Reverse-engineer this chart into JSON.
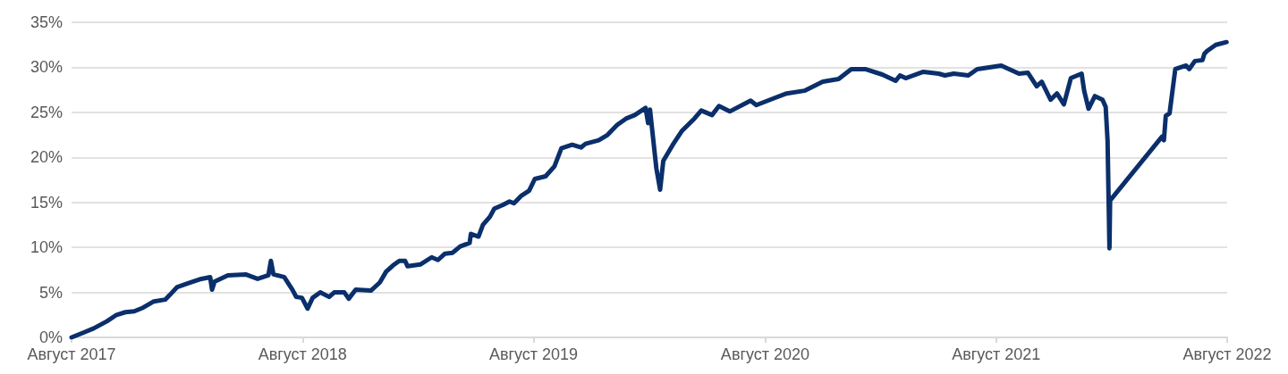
{
  "chart_data": {
    "type": "line",
    "x": [
      "2017-08-01",
      "2017-08-22",
      "2017-09-05",
      "2017-09-26",
      "2017-10-11",
      "2017-10-25",
      "2017-11-08",
      "2017-11-22",
      "2017-12-09",
      "2017-12-27",
      "2018-01-03",
      "2018-01-15",
      "2018-02-01",
      "2018-02-22",
      "2018-03-08",
      "2018-03-11",
      "2018-03-15",
      "2018-04-05",
      "2018-05-03",
      "2018-05-22",
      "2018-06-08",
      "2018-06-12",
      "2018-06-16",
      "2018-07-03",
      "2018-07-16",
      "2018-07-22",
      "2018-07-31",
      "2018-08-09",
      "2018-08-17",
      "2018-08-29",
      "2018-09-12",
      "2018-09-20",
      "2018-10-06",
      "2018-10-13",
      "2018-10-24",
      "2018-11-17",
      "2018-12-01",
      "2018-12-11",
      "2018-12-22",
      "2019-01-01",
      "2019-01-10",
      "2019-01-14",
      "2019-02-03",
      "2019-02-21",
      "2019-03-03",
      "2019-03-14",
      "2019-03-26",
      "2019-04-07",
      "2019-04-22",
      "2019-04-24",
      "2019-05-06",
      "2019-05-13",
      "2019-05-24",
      "2019-05-31",
      "2019-06-13",
      "2019-06-24",
      "2019-07-01",
      "2019-07-12",
      "2019-07-25",
      "2019-08-03",
      "2019-08-20",
      "2019-09-03",
      "2019-09-14",
      "2019-10-01",
      "2019-10-15",
      "2019-10-22",
      "2019-11-12",
      "2019-11-26",
      "2019-12-11",
      "2019-12-25",
      "2020-01-08",
      "2020-01-25",
      "2020-01-29",
      "2020-02-01",
      "2020-02-11",
      "2020-02-17",
      "2020-02-22",
      "2020-03-08",
      "2020-03-22",
      "2020-04-11",
      "2020-04-22",
      "2020-05-09",
      "2020-05-20",
      "2020-06-06",
      "2020-07-09",
      "2020-07-18",
      "2020-08-16",
      "2020-09-04",
      "2020-10-02",
      "2020-10-31",
      "2020-11-25",
      "2020-12-15",
      "2021-01-06",
      "2021-02-02",
      "2021-02-23",
      "2021-03-02",
      "2021-03-11",
      "2021-04-08",
      "2021-05-02",
      "2021-05-12",
      "2021-05-26",
      "2021-06-18",
      "2021-07-02",
      "2021-08-09",
      "2021-09-06",
      "2021-09-20",
      "2021-10-04",
      "2021-10-12",
      "2021-10-26",
      "2021-11-05",
      "2021-11-16",
      "2021-11-27",
      "2021-12-14",
      "2021-12-18",
      "2021-12-25",
      "2022-01-04",
      "2022-01-16",
      "2022-01-21",
      "2022-01-24",
      "2022-01-27",
      "2022-01-28",
      "2022-04-20",
      "2022-04-23",
      "2022-04-26",
      "2022-05-02",
      "2022-05-11",
      "2022-05-28",
      "2022-06-02",
      "2022-06-11",
      "2022-06-23",
      "2022-06-26",
      "2022-06-30",
      "2022-07-14",
      "2022-07-31"
    ],
    "series": [
      {
        "color": "#0a2f6b",
        "values": [
          0,
          0.6,
          1.0,
          1.8,
          2.5,
          2.8,
          2.9,
          3.3,
          4.0,
          4.2,
          4.7,
          5.6,
          6.0,
          6.5,
          6.7,
          5.3,
          6.2,
          6.9,
          7.0,
          6.5,
          6.9,
          8.5,
          7.0,
          6.7,
          5.3,
          4.5,
          4.4,
          3.2,
          4.4,
          5.0,
          4.5,
          5.0,
          5.0,
          4.3,
          5.3,
          5.2,
          6.1,
          7.3,
          8.0,
          8.5,
          8.5,
          7.9,
          8.1,
          8.9,
          8.6,
          9.3,
          9.4,
          10.1,
          10.5,
          11.5,
          11.2,
          12.5,
          13.4,
          14.3,
          14.7,
          15.1,
          14.9,
          15.7,
          16.3,
          17.6,
          17.9,
          19.0,
          21.0,
          21.4,
          21.1,
          21.5,
          21.9,
          22.5,
          23.6,
          24.3,
          24.7,
          25.5,
          23.8,
          25.3,
          18.8,
          16.4,
          19.6,
          21.4,
          22.9,
          24.3,
          25.2,
          24.7,
          25.7,
          25.1,
          26.3,
          25.8,
          26.6,
          27.1,
          27.4,
          28.4,
          28.7,
          29.8,
          29.8,
          29.2,
          28.5,
          29.1,
          28.8,
          29.5,
          29.3,
          29.1,
          29.3,
          29.1,
          29.8,
          30.2,
          29.3,
          29.4,
          27.9,
          28.4,
          26.4,
          27.1,
          25.9,
          28.8,
          29.3,
          27.4,
          25.4,
          26.8,
          26.4,
          25.6,
          21.9,
          9.9,
          15.2,
          22.3,
          21.9,
          24.6,
          24.9,
          29.8,
          30.2,
          29.8,
          30.7,
          30.8,
          31.5,
          31.8,
          32.5,
          32.8
        ]
      }
    ],
    "xlim": [
      "2017-08",
      "2022-08"
    ],
    "xticks": [
      {
        "value": "2017-08",
        "label": "Август 2017"
      },
      {
        "value": "2018-08",
        "label": "Август 2018"
      },
      {
        "value": "2019-08",
        "label": "Август 2019"
      },
      {
        "value": "2020-08",
        "label": "Август 2020"
      },
      {
        "value": "2021-08",
        "label": "Август 2021"
      },
      {
        "value": "2022-08",
        "label": "Август 2022"
      }
    ],
    "ylim": [
      0,
      35
    ],
    "yticks": [
      {
        "value": 0,
        "label": "0%"
      },
      {
        "value": 5,
        "label": "5%"
      },
      {
        "value": 10,
        "label": "10%"
      },
      {
        "value": 15,
        "label": "15%"
      },
      {
        "value": 20,
        "label": "20%"
      },
      {
        "value": 25,
        "label": "25%"
      },
      {
        "value": 30,
        "label": "30%"
      },
      {
        "value": 35,
        "label": "35%"
      }
    ],
    "grid": "y",
    "marker": "none",
    "line_style": "solid"
  }
}
